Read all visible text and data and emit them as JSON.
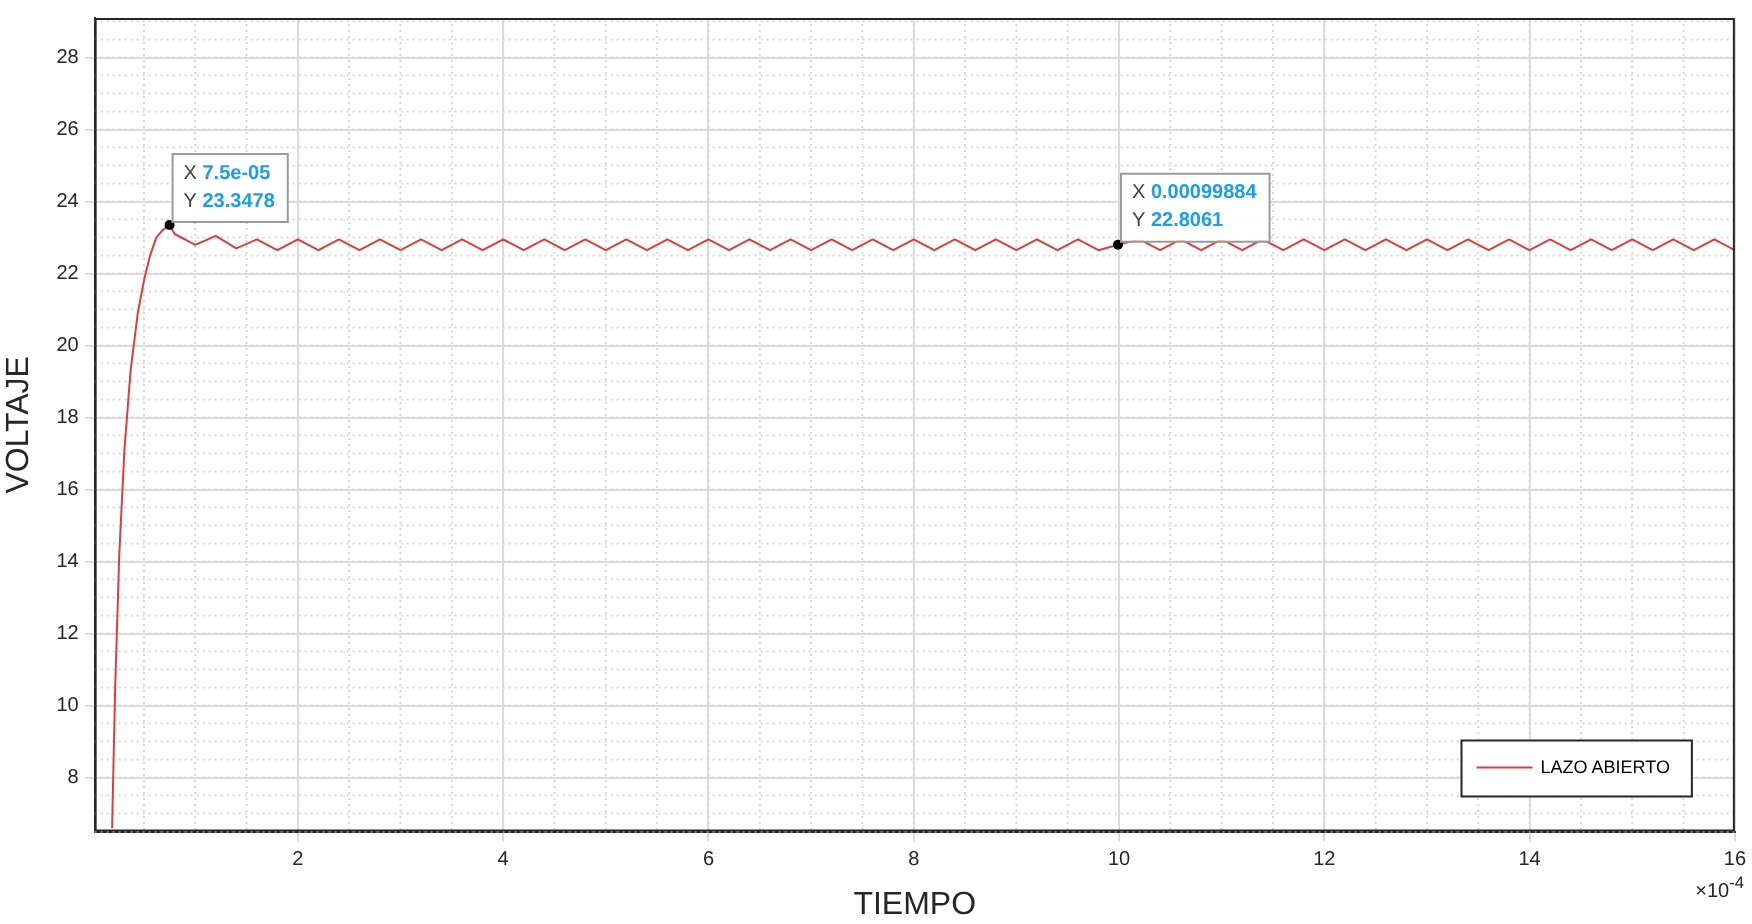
{
  "chart_data": {
    "type": "line",
    "xlabel": "TIEMPO",
    "ylabel": "VOLTAJE",
    "xlim": [
      0.02,
      16
    ],
    "ylim": [
      6.5,
      29.1
    ],
    "xticks": [
      2,
      4,
      6,
      8,
      10,
      12,
      14,
      16
    ],
    "yticks": [
      8,
      10,
      12,
      14,
      16,
      18,
      20,
      22,
      24,
      26,
      28
    ],
    "grid": true,
    "legend": "bottom right",
    "marker": "none",
    "line_style": "solid",
    "annotations": [
      {
        "text": "X 7.5e-05\nY 23.3478",
        "x": 0.75,
        "y": 23.35
      },
      {
        "text": "X 0.00099884\nY 22.8061",
        "x": 9.99,
        "y": 22.8
      },
      "×10$^{-4}$"
    ],
    "series": [
      {
        "name": "LAZO ABIERTO",
        "color": "#e03c3c",
        "x": [
          0.19,
          0.22,
          0.26,
          0.31,
          0.37,
          0.44,
          0.5,
          0.56,
          0.62,
          0.68,
          0.75,
          0.8,
          1.0,
          1.2,
          1.4,
          1.6,
          1.8,
          2.0,
          2.2,
          2.4,
          2.6,
          2.8,
          3.0,
          3.2,
          3.4,
          3.6,
          3.8,
          4.0,
          4.2,
          4.4,
          4.6,
          4.8,
          5.0,
          5.2,
          5.4,
          5.6,
          5.8,
          6.0,
          6.2,
          6.4,
          6.6,
          6.8,
          7.0,
          7.2,
          7.4,
          7.6,
          7.8,
          8.0,
          8.2,
          8.4,
          8.6,
          8.8,
          9.0,
          9.2,
          9.4,
          9.6,
          9.8,
          9.99,
          10.2,
          10.4,
          10.6,
          10.8,
          11.0,
          11.2,
          11.4,
          11.6,
          11.8,
          12.0,
          12.2,
          12.4,
          12.6,
          12.8,
          13.0,
          13.2,
          13.4,
          13.6,
          13.8,
          14.0,
          14.2,
          14.4,
          14.6,
          14.8,
          15.0,
          15.2,
          15.4,
          15.6,
          15.8,
          16.0
        ],
        "values": [
          6.6,
          10.5,
          14.2,
          17.1,
          19.3,
          20.9,
          21.8,
          22.5,
          23.0,
          23.2,
          23.35,
          23.1,
          22.8,
          23.05,
          22.7,
          22.95,
          22.65,
          22.95,
          22.65,
          22.95,
          22.65,
          22.95,
          22.65,
          22.95,
          22.65,
          22.95,
          22.65,
          22.95,
          22.65,
          22.95,
          22.65,
          22.95,
          22.65,
          22.95,
          22.65,
          22.95,
          22.65,
          22.95,
          22.65,
          22.95,
          22.65,
          22.95,
          22.65,
          22.95,
          22.65,
          22.95,
          22.65,
          22.95,
          22.65,
          22.95,
          22.65,
          22.95,
          22.65,
          22.95,
          22.65,
          22.95,
          22.65,
          22.8,
          22.95,
          22.65,
          22.95,
          22.65,
          22.95,
          22.65,
          22.95,
          22.65,
          22.95,
          22.65,
          22.95,
          22.65,
          22.95,
          22.65,
          22.95,
          22.65,
          22.95,
          22.65,
          22.95,
          22.65,
          22.95,
          22.65,
          22.95,
          22.65,
          22.95,
          22.65,
          22.95,
          22.65,
          22.95,
          22.65
        ]
      }
    ]
  }
}
